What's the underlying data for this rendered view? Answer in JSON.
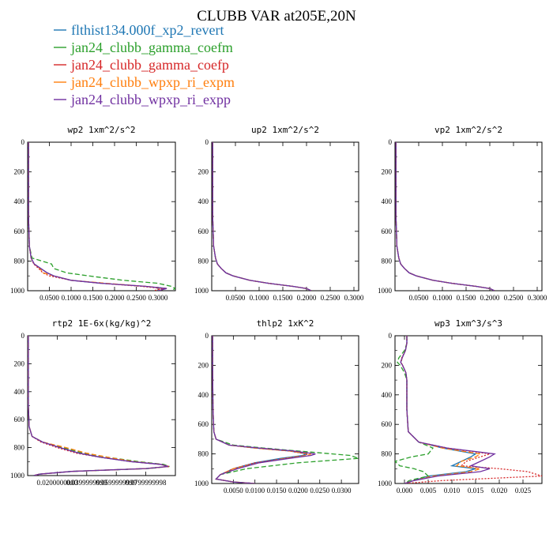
{
  "title": "CLUBB VAR at205E,20N",
  "legend": [
    {
      "label": "flthist134.000f_xp2_revert",
      "color": "#1f77b4",
      "dash": ""
    },
    {
      "label": "jan24_clubb_gamma_coefm",
      "color": "#2ca02c",
      "dash": "6,3"
    },
    {
      "label": "jan24_clubb_gamma_coefp",
      "color": "#d62728",
      "dash": "2,2"
    },
    {
      "label": "jan24_clubb_wpxp_ri_expm",
      "color": "#ff7f0e",
      "dash": "6,3"
    },
    {
      "label": "jan24_clubb_wpxp_ri_expp",
      "color": "#7030a0",
      "dash": ""
    }
  ],
  "chart_data": [
    {
      "type": "line",
      "title": "wp2  1xm^2/s^2",
      "xlim": [
        0,
        0.34
      ],
      "ylim": [
        1000,
        0
      ],
      "xticks": [
        0.05,
        0.1,
        0.15,
        0.2,
        0.25,
        0.3
      ],
      "xtick_labels": [
        "0.0500",
        "0.1000",
        "0.1500",
        "0.2000",
        "0.2500",
        "0.3000"
      ],
      "yticks": [
        0,
        200,
        400,
        600,
        800,
        1000
      ],
      "ytick_labels": [
        "0",
        "200",
        "400",
        "600",
        "800",
        "1000"
      ],
      "y": [
        0,
        100,
        250,
        500,
        700,
        780,
        820,
        850,
        880,
        900,
        930,
        950,
        970,
        985,
        1000
      ],
      "series": [
        {
          "values": [
            0.002,
            0.002,
            0.002,
            0.002,
            0.004,
            0.008,
            0.015,
            0.03,
            0.045,
            0.06,
            0.1,
            0.17,
            0.27,
            0.32,
            0.3
          ]
        },
        {
          "values": [
            0.002,
            0.002,
            0.002,
            0.002,
            0.004,
            0.01,
            0.055,
            0.06,
            0.09,
            0.14,
            0.22,
            0.3,
            0.33,
            0.34,
            0.33
          ]
        },
        {
          "values": [
            0.002,
            0.002,
            0.002,
            0.002,
            0.004,
            0.008,
            0.014,
            0.025,
            0.035,
            0.05,
            0.1,
            0.17,
            0.26,
            0.31,
            0.29
          ]
        },
        {
          "values": [
            0.002,
            0.002,
            0.002,
            0.002,
            0.004,
            0.008,
            0.015,
            0.028,
            0.036,
            0.06,
            0.1,
            0.18,
            0.27,
            0.32,
            0.3
          ]
        },
        {
          "values": [
            0.002,
            0.002,
            0.002,
            0.002,
            0.004,
            0.008,
            0.015,
            0.03,
            0.045,
            0.06,
            0.1,
            0.17,
            0.27,
            0.32,
            0.3
          ]
        }
      ]
    },
    {
      "type": "line",
      "title": "up2  1xm^2/s^2",
      "xlim": [
        0,
        0.31
      ],
      "ylim": [
        1000,
        0
      ],
      "xticks": [
        0.05,
        0.1,
        0.15,
        0.2,
        0.25,
        0.3
      ],
      "xtick_labels": [
        "0.0500",
        "0.1000",
        "0.1500",
        "0.2000",
        "0.2500",
        "0.3000"
      ],
      "yticks": [
        0,
        200,
        400,
        600,
        800,
        1000
      ],
      "ytick_labels": [
        "0",
        "200",
        "400",
        "600",
        "800",
        "1000"
      ],
      "y": [
        0,
        200,
        500,
        700,
        780,
        820,
        850,
        880,
        900,
        930,
        950,
        970,
        985,
        1000
      ],
      "series": [
        {
          "values": [
            0.002,
            0.002,
            0.002,
            0.004,
            0.008,
            0.012,
            0.02,
            0.03,
            0.045,
            0.08,
            0.12,
            0.17,
            0.2,
            0.21
          ]
        },
        {
          "values": [
            0.002,
            0.002,
            0.002,
            0.004,
            0.008,
            0.012,
            0.02,
            0.03,
            0.046,
            0.08,
            0.12,
            0.17,
            0.2,
            0.21
          ]
        },
        {
          "values": [
            0.002,
            0.002,
            0.002,
            0.004,
            0.008,
            0.012,
            0.02,
            0.03,
            0.045,
            0.08,
            0.12,
            0.17,
            0.2,
            0.21
          ]
        },
        {
          "values": [
            0.002,
            0.002,
            0.002,
            0.004,
            0.008,
            0.012,
            0.02,
            0.03,
            0.045,
            0.08,
            0.12,
            0.17,
            0.2,
            0.21
          ]
        },
        {
          "values": [
            0.002,
            0.002,
            0.002,
            0.004,
            0.008,
            0.012,
            0.02,
            0.03,
            0.045,
            0.08,
            0.12,
            0.17,
            0.2,
            0.21
          ]
        }
      ]
    },
    {
      "type": "line",
      "title": "vp2  1xm^2/s^2",
      "xlim": [
        0,
        0.31
      ],
      "ylim": [
        1000,
        0
      ],
      "xticks": [
        0.05,
        0.1,
        0.15,
        0.2,
        0.25,
        0.3
      ],
      "xtick_labels": [
        "0.0500",
        "0.1000",
        "0.1500",
        "0.2000",
        "0.2500",
        "0.3000"
      ],
      "yticks": [
        0,
        200,
        400,
        600,
        800,
        1000
      ],
      "ytick_labels": [
        "0",
        "200",
        "400",
        "600",
        "800",
        "1000"
      ],
      "y": [
        0,
        200,
        500,
        700,
        780,
        820,
        850,
        880,
        900,
        930,
        950,
        970,
        985,
        1000
      ],
      "series": [
        {
          "values": [
            0.002,
            0.002,
            0.002,
            0.004,
            0.008,
            0.012,
            0.02,
            0.03,
            0.045,
            0.08,
            0.12,
            0.17,
            0.2,
            0.21
          ]
        },
        {
          "values": [
            0.002,
            0.002,
            0.002,
            0.004,
            0.008,
            0.012,
            0.02,
            0.03,
            0.046,
            0.08,
            0.12,
            0.17,
            0.2,
            0.21
          ]
        },
        {
          "values": [
            0.002,
            0.002,
            0.002,
            0.004,
            0.008,
            0.012,
            0.02,
            0.03,
            0.045,
            0.08,
            0.12,
            0.17,
            0.2,
            0.21
          ]
        },
        {
          "values": [
            0.002,
            0.002,
            0.002,
            0.004,
            0.008,
            0.012,
            0.02,
            0.03,
            0.045,
            0.08,
            0.12,
            0.17,
            0.2,
            0.21
          ]
        },
        {
          "values": [
            0.002,
            0.002,
            0.002,
            0.004,
            0.008,
            0.012,
            0.02,
            0.03,
            0.045,
            0.08,
            0.12,
            0.17,
            0.2,
            0.21
          ]
        }
      ]
    },
    {
      "type": "line",
      "title": "rtp2  1E-6x(kg/kg)^2",
      "xlim": [
        0,
        0.1
      ],
      "ylim": [
        1000,
        0
      ],
      "xticks": [
        0.02,
        0.04,
        0.06,
        0.08
      ],
      "xtick_labels": [
        "0.0200000000",
        "0.0399999999",
        "0.0599999999",
        "0.0799999998"
      ],
      "yticks": [
        0,
        200,
        400,
        600,
        800,
        1000
      ],
      "ytick_labels": [
        "0",
        "200",
        "400",
        "600",
        "800",
        "1000"
      ],
      "y": [
        0,
        200,
        500,
        650,
        720,
        760,
        800,
        840,
        870,
        900,
        920,
        935,
        950,
        970,
        990,
        1000
      ],
      "series": [
        {
          "values": [
            0.0005,
            0.0005,
            0.0005,
            0.001,
            0.003,
            0.01,
            0.022,
            0.035,
            0.05,
            0.07,
            0.09,
            0.095,
            0.08,
            0.03,
            0.008,
            0.004
          ]
        },
        {
          "values": [
            0.0005,
            0.0005,
            0.0005,
            0.001,
            0.003,
            0.01,
            0.024,
            0.038,
            0.055,
            0.075,
            0.092,
            0.096,
            0.082,
            0.03,
            0.008,
            0.004
          ]
        },
        {
          "values": [
            0.0005,
            0.0005,
            0.0005,
            0.001,
            0.003,
            0.009,
            0.02,
            0.033,
            0.05,
            0.07,
            0.09,
            0.096,
            0.08,
            0.03,
            0.008,
            0.004
          ]
        },
        {
          "values": [
            0.0005,
            0.0005,
            0.0005,
            0.001,
            0.003,
            0.01,
            0.026,
            0.04,
            0.055,
            0.072,
            0.09,
            0.095,
            0.08,
            0.03,
            0.008,
            0.004
          ]
        },
        {
          "values": [
            0.0005,
            0.0005,
            0.0005,
            0.001,
            0.003,
            0.01,
            0.022,
            0.035,
            0.05,
            0.07,
            0.09,
            0.095,
            0.08,
            0.03,
            0.008,
            0.004
          ]
        }
      ]
    },
    {
      "type": "line",
      "title": "thlp2  1xK^2",
      "xlim": [
        0,
        0.034
      ],
      "ylim": [
        1000,
        0
      ],
      "xticks": [
        0.005,
        0.01,
        0.015,
        0.02,
        0.025,
        0.03
      ],
      "xtick_labels": [
        "0.0050",
        "0.0100",
        "0.0150",
        "0.0200",
        "0.0250",
        "0.0300"
      ],
      "yticks": [
        0,
        200,
        400,
        600,
        800,
        1000
      ],
      "ytick_labels": [
        "0",
        "200",
        "400",
        "600",
        "800",
        "1000"
      ],
      "y": [
        0,
        200,
        500,
        650,
        700,
        740,
        760,
        780,
        800,
        810,
        830,
        860,
        900,
        940,
        970,
        990,
        1000
      ],
      "series": [
        {
          "values": [
            0.0002,
            0.0002,
            0.0003,
            0.0005,
            0.001,
            0.004,
            0.01,
            0.018,
            0.022,
            0.021,
            0.016,
            0.01,
            0.005,
            0.002,
            0.001,
            0.005,
            0.01
          ]
        },
        {
          "values": [
            0.0002,
            0.0002,
            0.0003,
            0.0005,
            0.001,
            0.005,
            0.012,
            0.02,
            0.028,
            0.032,
            0.034,
            0.02,
            0.008,
            0.002,
            0.001,
            0.005,
            0.01
          ]
        },
        {
          "values": [
            0.0002,
            0.0002,
            0.0003,
            0.0005,
            0.001,
            0.004,
            0.01,
            0.018,
            0.022,
            0.022,
            0.017,
            0.01,
            0.005,
            0.002,
            0.001,
            0.005,
            0.01
          ]
        },
        {
          "values": [
            0.0002,
            0.0002,
            0.0003,
            0.0005,
            0.001,
            0.004,
            0.01,
            0.018,
            0.023,
            0.022,
            0.017,
            0.011,
            0.005,
            0.002,
            0.001,
            0.005,
            0.01
          ]
        },
        {
          "values": [
            0.0002,
            0.0002,
            0.0003,
            0.0005,
            0.001,
            0.004,
            0.011,
            0.019,
            0.024,
            0.023,
            0.018,
            0.011,
            0.006,
            0.002,
            0.001,
            0.005,
            0.01
          ]
        }
      ]
    },
    {
      "type": "line",
      "title": "wp3  1xm^3/s^3",
      "xlim": [
        -0.002,
        0.029
      ],
      "ylim": [
        1000,
        0
      ],
      "xticks": [
        0,
        0.005,
        0.01,
        0.015,
        0.02,
        0.025
      ],
      "xtick_labels": [
        "0.000",
        "0.005",
        "0.010",
        "0.015",
        "0.020",
        "0.025"
      ],
      "yticks": [
        0,
        200,
        400,
        600,
        800,
        1000
      ],
      "ytick_labels": [
        "0",
        "200",
        "400",
        "600",
        "800",
        "1000"
      ],
      "y": [
        0,
        50,
        100,
        150,
        180,
        200,
        250,
        300,
        500,
        650,
        720,
        760,
        800,
        820,
        850,
        880,
        900,
        920,
        950,
        980,
        1000
      ],
      "series": [
        {
          "values": [
            0.0005,
            0.0005,
            0.0002,
            -0.0005,
            -0.0008,
            -0.0004,
            0.0003,
            0.0005,
            0.0005,
            0.0008,
            0.003,
            0.008,
            0.015,
            0.014,
            0.012,
            0.01,
            0.015,
            0.013,
            0.005,
            0.002,
            0.0
          ]
        },
        {
          "values": [
            0.0005,
            0.0005,
            0.0,
            -0.0012,
            -0.0015,
            -0.0009,
            0.0,
            0.0005,
            0.0005,
            0.0008,
            0.003,
            0.006,
            0.005,
            0.0015,
            -0.002,
            -0.001,
            0.002,
            0.004,
            0.005,
            0.001,
            0.0
          ]
        },
        {
          "values": [
            0.0005,
            0.0005,
            0.0002,
            -0.0006,
            -0.0008,
            -0.0004,
            0.0003,
            0.0005,
            0.0005,
            0.0008,
            0.003,
            0.009,
            0.018,
            0.016,
            0.013,
            0.012,
            0.02,
            0.026,
            0.029,
            0.008,
            0.0
          ]
        },
        {
          "values": [
            0.0005,
            0.0005,
            0.0002,
            -0.0005,
            -0.0007,
            -0.0004,
            0.0003,
            0.0005,
            0.0005,
            0.0008,
            0.003,
            0.008,
            0.016,
            0.015,
            0.012,
            0.011,
            0.016,
            0.014,
            0.006,
            0.002,
            0.0
          ]
        },
        {
          "values": [
            0.0005,
            0.0005,
            0.0002,
            -0.0005,
            -0.0008,
            -0.0004,
            0.0003,
            0.0005,
            0.0005,
            0.0008,
            0.003,
            0.009,
            0.019,
            0.018,
            0.016,
            0.014,
            0.018,
            0.016,
            0.007,
            0.002,
            0.0
          ]
        }
      ]
    }
  ]
}
